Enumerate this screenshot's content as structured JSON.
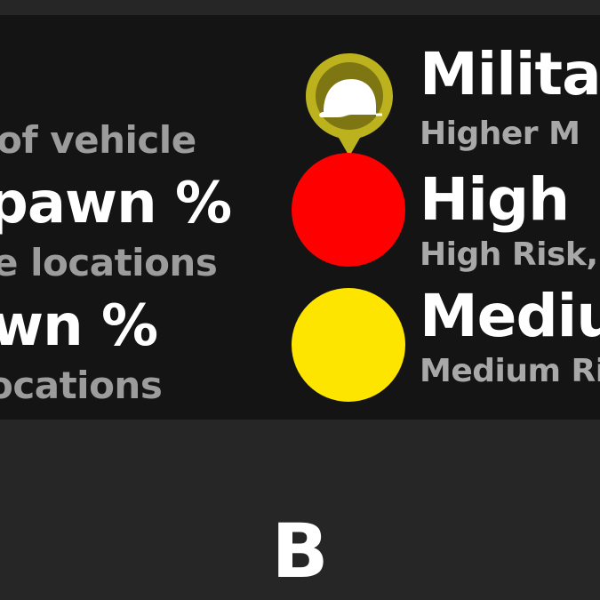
{
  "legend": {
    "left": {
      "line1": "of vehicle",
      "line2": "pawn %",
      "line3": "e locations",
      "line4": "wn %",
      "line5": "ocations"
    },
    "military": {
      "title": "Milita",
      "subtitle": "Higher M",
      "color": "#bcb21e",
      "icon": "helmet-icon"
    },
    "high": {
      "title": "High",
      "subtitle": "High Risk,",
      "color": "#fe0000"
    },
    "medium": {
      "title": "Mediu",
      "subtitle": "Medium Ri",
      "color": "#fee500"
    }
  },
  "section_label": "B"
}
